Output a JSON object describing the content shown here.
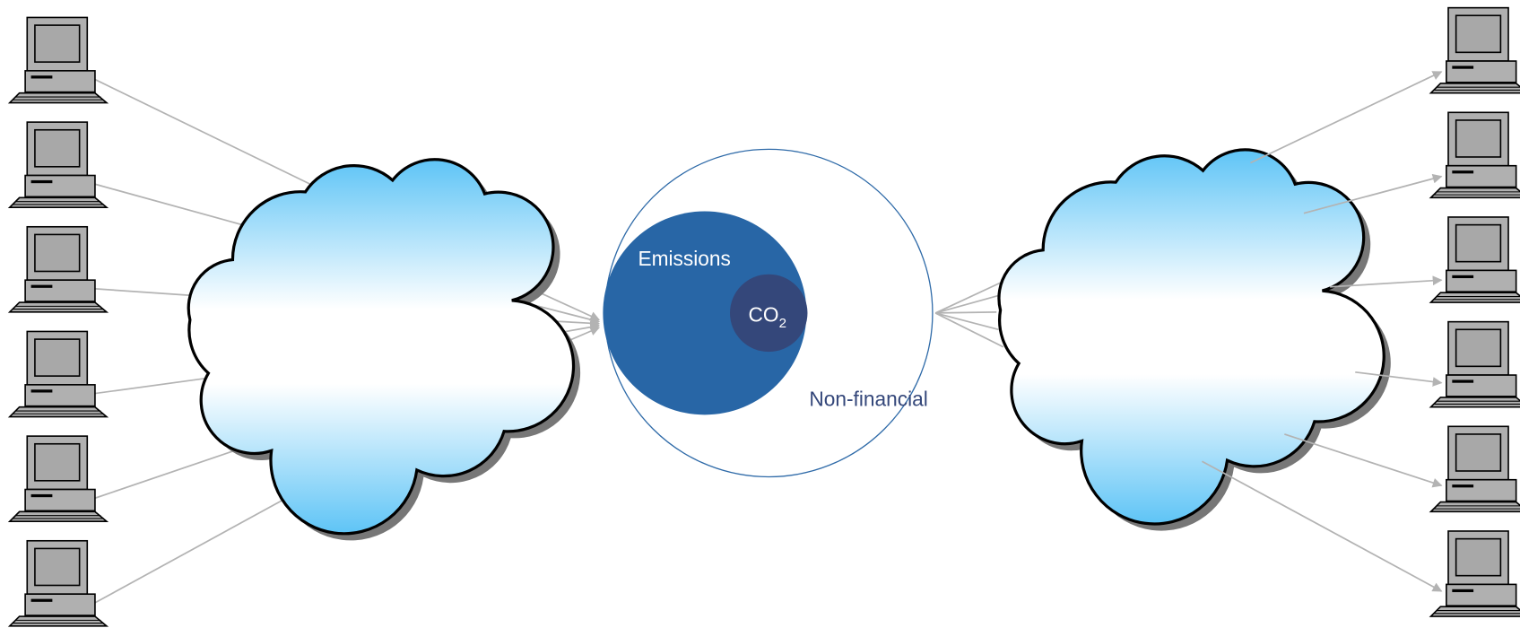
{
  "nodes": [
    {
      "label": "Emissions"
    },
    {
      "label": "CO",
      "subscript": "2"
    },
    {
      "label": "Non-financial"
    }
  ]
}
